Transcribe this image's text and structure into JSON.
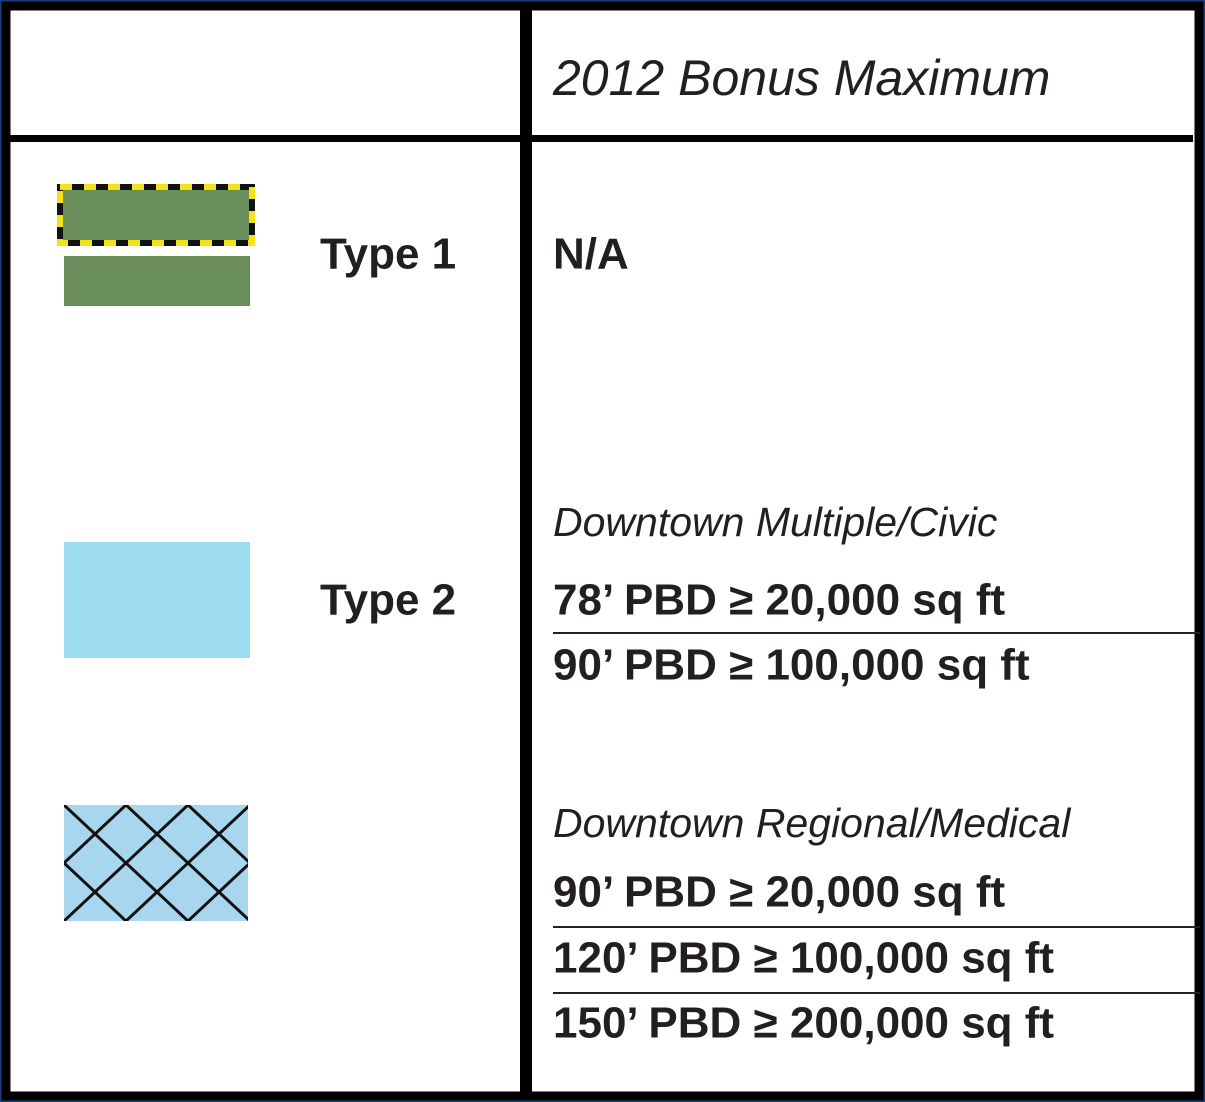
{
  "header": {
    "title": "2012 Bonus Maximum"
  },
  "rows": [
    {
      "label": "Type 1",
      "lines": [
        "N/A"
      ]
    },
    {
      "label": "Type 2",
      "subheading": "Downtown Multiple/Civic",
      "lines": [
        "78’ PBD ≥ 20,000 sq ft",
        "90’ PBD ≥ 100,000 sq ft"
      ]
    },
    {
      "subheading": "Downtown Regional/Medical",
      "lines": [
        "90’ PBD ≥ 20,000 sq ft",
        "120’ PBD ≥ 100,000 sq ft",
        "150’ PBD ≥ 200,000 sq ft"
      ]
    }
  ]
}
